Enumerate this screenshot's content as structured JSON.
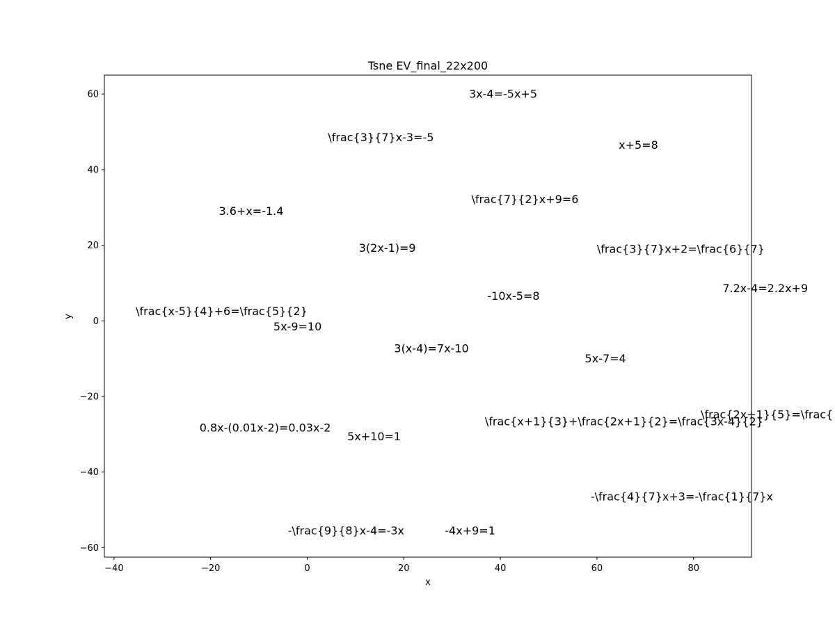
{
  "chart_data": {
    "type": "scatter",
    "title": "Tsne EV_final_22x200",
    "xlabel": "x",
    "ylabel": "y",
    "xlim": [
      -42,
      92
    ],
    "ylim": [
      -62.5,
      65
    ],
    "xticks": [
      -40,
      -20,
      0,
      20,
      40,
      60,
      80
    ],
    "yticks": [
      -60,
      -40,
      -20,
      0,
      20,
      40,
      60
    ],
    "grid": false,
    "legend": false,
    "points": [
      {
        "label": "3x-4=-5x+5",
        "x": 33.5,
        "y": 60
      },
      {
        "label": "\\frac{3}{7}x-3=-5",
        "x": 4.3,
        "y": 48.5
      },
      {
        "label": "x+5=8",
        "x": 64.5,
        "y": 46.5
      },
      {
        "label": "\\frac{7}{2}x+9=6",
        "x": 34.0,
        "y": 32.2
      },
      {
        "label": "3.6+x=-1.4",
        "x": -18.3,
        "y": 29.0
      },
      {
        "label": "3(2x-1)=9",
        "x": 10.7,
        "y": 19.3
      },
      {
        "label": "\\frac{3}{7}x+2=\\frac{6}{7}",
        "x": 60.0,
        "y": 19.0
      },
      {
        "label": "7.2x-4=2.2x+9",
        "x": 86.0,
        "y": 8.6
      },
      {
        "label": "-10x-5=8",
        "x": 37.3,
        "y": 6.6
      },
      {
        "label": "\\frac{x-5}{4}+6=\\frac{5}{2}",
        "x": -35.5,
        "y": 2.5
      },
      {
        "label": "5x-9=10",
        "x": -7.0,
        "y": -1.5
      },
      {
        "label": "3(x-4)=7x-10",
        "x": 18.0,
        "y": -7.3
      },
      {
        "label": "5x-7=4",
        "x": 57.5,
        "y": -10.0
      },
      {
        "label": "\\frac{2x+1}{5}=\\frac{",
        "x": 81.5,
        "y": -24.8
      },
      {
        "label": "\\frac{x+1}{3}+\\frac{2x+1}{2}=\\frac{3x-4}{2}",
        "x": 36.8,
        "y": -26.6
      },
      {
        "label": "0.8x-(0.01x-2)=0.03x-2",
        "x": -22.3,
        "y": -28.3
      },
      {
        "label": "5x+10=1",
        "x": 8.3,
        "y": -30.6
      },
      {
        "label": "-\\frac{4}{7}x+3=-\\frac{1}{7}x",
        "x": 58.7,
        "y": -46.5
      },
      {
        "label": "-\\frac{9}{8}x-4=-3x",
        "x": -4.0,
        "y": -55.5
      },
      {
        "label": "-4x+9=1",
        "x": 28.5,
        "y": -55.5
      }
    ]
  }
}
